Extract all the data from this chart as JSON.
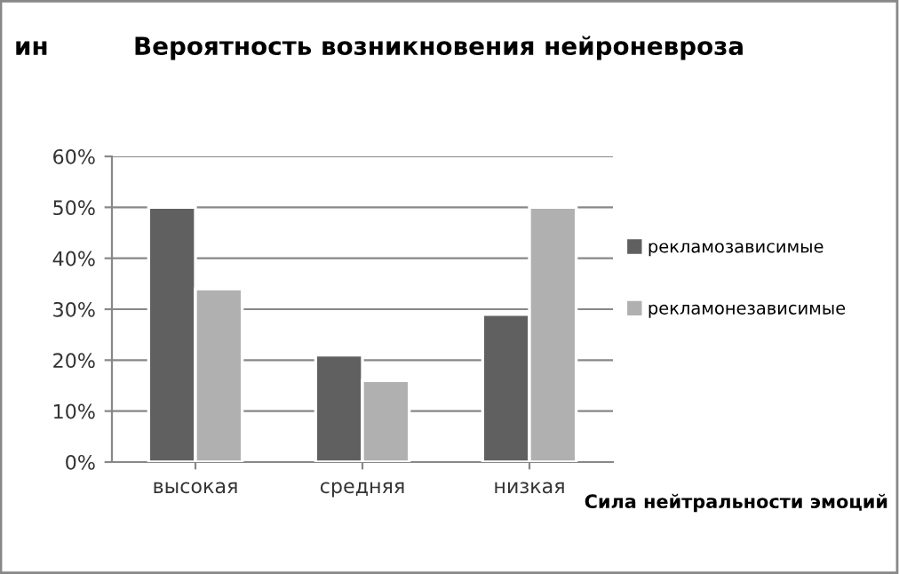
{
  "chart_data": {
    "type": "bar",
    "title": "Вероятность возникновения нейроневроза",
    "ylabel": "ин",
    "xlabel": "Сила нейтральности эмоций",
    "categories": [
      "высокая",
      "средняя",
      "низкая"
    ],
    "series": [
      {
        "name": "рекламозависимые",
        "color": "#606060",
        "values": [
          50,
          21,
          29
        ]
      },
      {
        "name": "рекламонезависимые",
        "color": "#b0b0b0",
        "values": [
          34,
          16,
          50
        ]
      }
    ],
    "ylim": [
      0,
      60
    ],
    "yticks": [
      {
        "value": 0,
        "label": "0%"
      },
      {
        "value": 10,
        "label": "10%"
      },
      {
        "value": 20,
        "label": "20%"
      },
      {
        "value": 30,
        "label": "30%"
      },
      {
        "value": 40,
        "label": "40%"
      },
      {
        "value": 50,
        "label": "50%"
      },
      {
        "value": 60,
        "label": "60%"
      }
    ],
    "grid": "y",
    "legend": "right"
  }
}
